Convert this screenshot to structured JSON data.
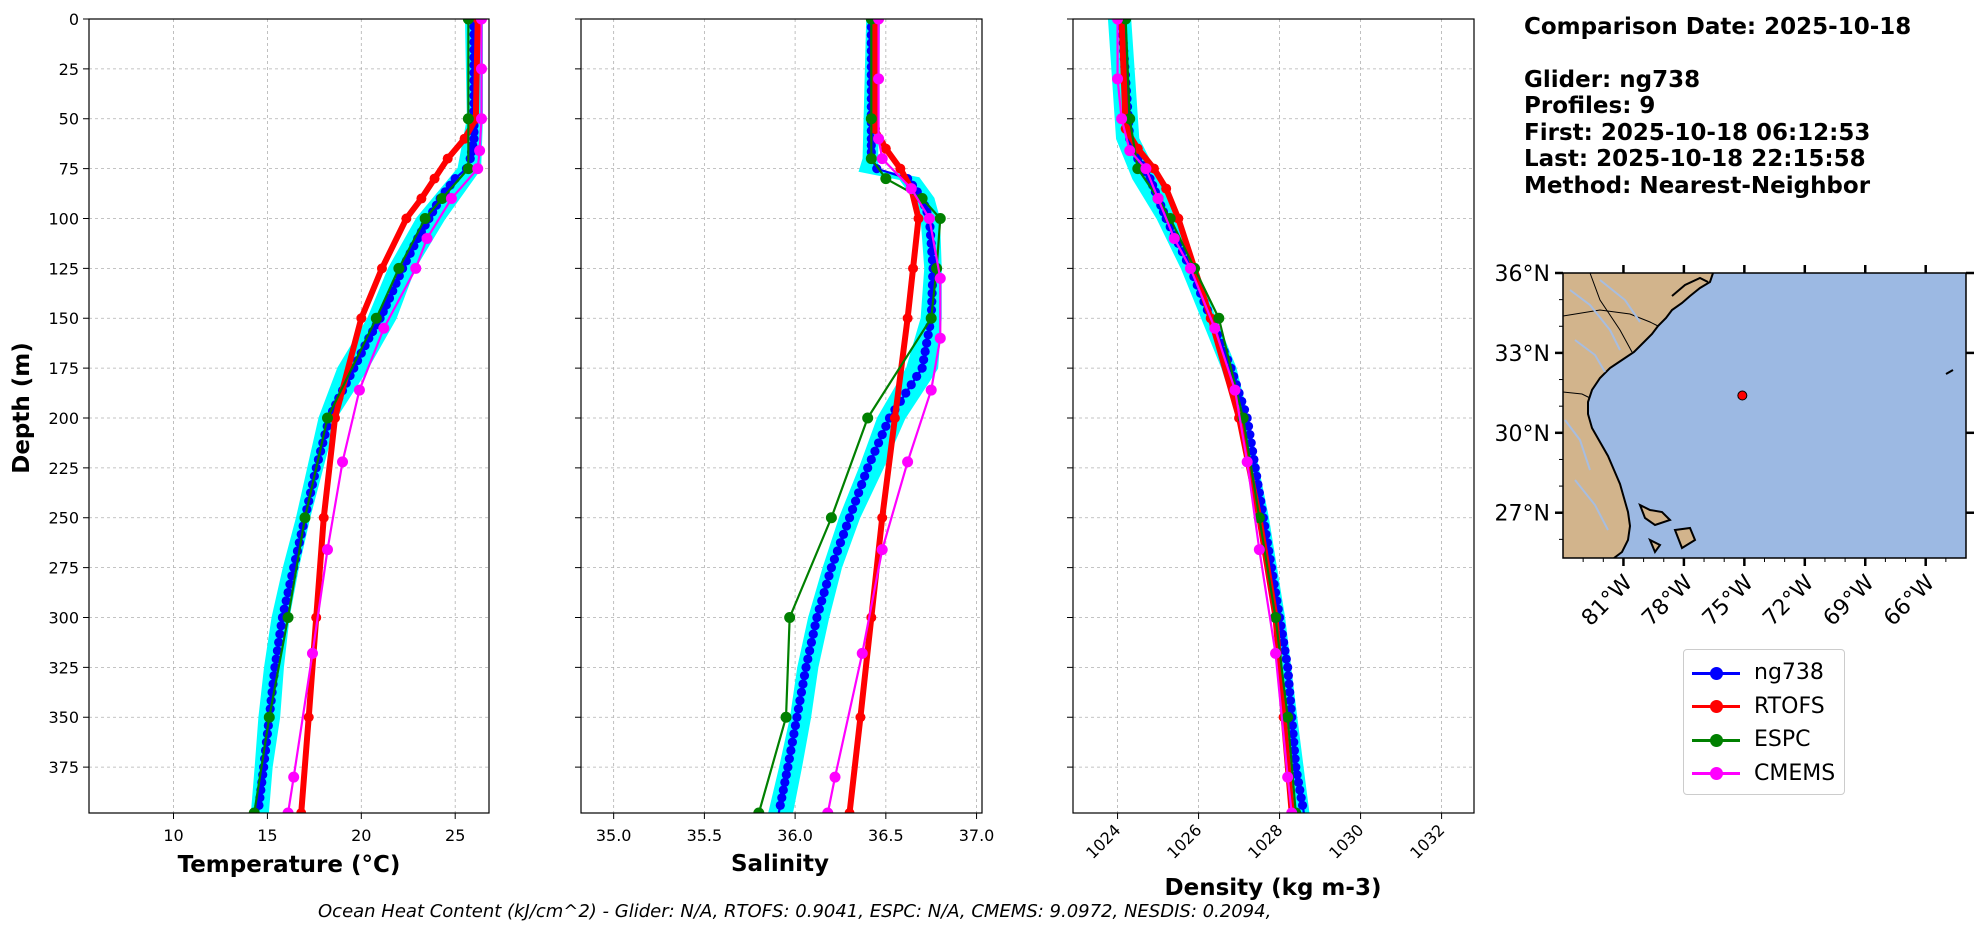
{
  "chart_data": [
    {
      "type": "line",
      "id": "temperature",
      "xlabel": "Temperature (°C)",
      "ylabel": "Depth (m)",
      "xlim": [
        5.5,
        26.8
      ],
      "ylim": [
        0,
        398
      ],
      "y_inverted": true,
      "xticks": [
        10,
        15,
        20,
        25
      ],
      "yticks": [
        0,
        25,
        50,
        75,
        100,
        125,
        150,
        175,
        200,
        225,
        250,
        275,
        300,
        325,
        350,
        375
      ],
      "grid": true,
      "series": [
        {
          "name": "ng738 spread",
          "color": "#00ffff",
          "kind": "band",
          "depth": [
            0,
            50,
            75,
            100,
            125,
            150,
            175,
            200,
            225,
            250,
            275,
            300,
            325,
            350,
            375,
            398
          ],
          "min": [
            25.6,
            25.7,
            25.2,
            23.0,
            21.5,
            20.4,
            18.8,
            17.8,
            17.2,
            16.6,
            15.9,
            15.3,
            14.9,
            14.6,
            14.4,
            14.2
          ],
          "max": [
            26.4,
            26.4,
            26.3,
            24.4,
            22.8,
            21.8,
            20.3,
            18.6,
            17.9,
            17.2,
            16.6,
            16.1,
            15.8,
            15.6,
            15.2,
            15.0
          ]
        },
        {
          "name": "ng738",
          "color": "#0000ff",
          "depth": [
            0,
            50,
            60,
            70,
            75,
            80,
            90,
            100,
            110,
            125,
            140,
            150,
            160,
            175,
            190,
            200,
            225,
            250,
            275,
            300,
            325,
            350,
            375,
            398
          ],
          "values": [
            26.0,
            26.0,
            26.0,
            25.8,
            25.6,
            25.0,
            24.2,
            23.6,
            23.0,
            22.2,
            21.5,
            21.0,
            20.4,
            19.6,
            18.8,
            18.3,
            17.6,
            17.0,
            16.4,
            15.8,
            15.4,
            15.1,
            14.8,
            14.5
          ]
        },
        {
          "name": "RTOFS",
          "color": "#ff0000",
          "width": 6,
          "depth": [
            0,
            50,
            60,
            70,
            80,
            90,
            100,
            125,
            150,
            200,
            250,
            300,
            350,
            398
          ],
          "values": [
            26.2,
            26.1,
            25.5,
            24.6,
            23.9,
            23.2,
            22.4,
            21.1,
            20.0,
            18.6,
            18.0,
            17.6,
            17.2,
            16.8
          ]
        },
        {
          "name": "ESPC",
          "color": "#008000",
          "depth": [
            0,
            50,
            75,
            90,
            100,
            125,
            150,
            200,
            250,
            300,
            350,
            398
          ],
          "values": [
            25.7,
            25.7,
            25.7,
            24.3,
            23.4,
            22.0,
            20.8,
            18.2,
            17.0,
            16.1,
            15.1,
            14.3
          ]
        },
        {
          "name": "CMEMS",
          "color": "#ff00ff",
          "depth": [
            0,
            25,
            50,
            66,
            75,
            90,
            110,
            125,
            155,
            186,
            222,
            266,
            318,
            380,
            398
          ],
          "values": [
            26.4,
            26.4,
            26.4,
            26.3,
            26.2,
            24.8,
            23.5,
            22.9,
            21.2,
            19.9,
            19.0,
            18.2,
            17.4,
            16.4,
            16.1
          ]
        }
      ]
    },
    {
      "type": "line",
      "id": "salinity",
      "xlabel": "Salinity",
      "xlim": [
        34.82,
        37.03
      ],
      "ylim": [
        0,
        398
      ],
      "y_inverted": true,
      "xticks": [
        35.0,
        35.5,
        36.0,
        36.5,
        37.0
      ],
      "grid": true,
      "series": [
        {
          "name": "ng738 spread",
          "color": "#00ffff",
          "kind": "band",
          "depth": [
            0,
            70,
            76,
            80,
            90,
            100,
            125,
            150,
            175,
            200,
            225,
            250,
            275,
            300,
            325,
            350,
            375,
            398
          ],
          "min": [
            36.4,
            36.38,
            36.36,
            36.58,
            36.66,
            36.7,
            36.72,
            36.7,
            36.62,
            36.46,
            36.36,
            36.25,
            36.16,
            36.08,
            36.02,
            35.98,
            35.92,
            35.86
          ],
          "max": [
            36.46,
            36.45,
            36.45,
            36.68,
            36.76,
            36.79,
            36.8,
            36.8,
            36.78,
            36.6,
            36.48,
            36.35,
            36.25,
            36.18,
            36.12,
            36.08,
            36.03,
            35.98
          ]
        },
        {
          "name": "ng738",
          "color": "#0000ff",
          "depth": [
            0,
            60,
            70,
            75,
            80,
            90,
            100,
            125,
            150,
            175,
            200,
            225,
            250,
            275,
            300,
            325,
            350,
            375,
            398
          ],
          "values": [
            36.42,
            36.42,
            36.42,
            36.45,
            36.62,
            36.7,
            36.74,
            36.76,
            36.75,
            36.7,
            36.52,
            36.4,
            36.3,
            36.2,
            36.12,
            36.06,
            36.01,
            35.96,
            35.91
          ]
        },
        {
          "name": "RTOFS",
          "color": "#ff0000",
          "width": 6,
          "depth": [
            0,
            55,
            65,
            75,
            85,
            100,
            125,
            150,
            200,
            250,
            300,
            350,
            398
          ],
          "values": [
            36.44,
            36.44,
            36.5,
            36.58,
            36.64,
            36.68,
            36.65,
            36.62,
            36.55,
            36.48,
            36.42,
            36.36,
            36.3
          ]
        },
        {
          "name": "ESPC",
          "color": "#008000",
          "depth": [
            0,
            50,
            70,
            80,
            90,
            100,
            125,
            150,
            200,
            250,
            300,
            350,
            398
          ],
          "values": [
            36.42,
            36.42,
            36.42,
            36.5,
            36.7,
            36.8,
            36.78,
            36.75,
            36.4,
            36.2,
            35.97,
            35.95,
            35.8
          ]
        },
        {
          "name": "CMEMS",
          "color": "#ff00ff",
          "depth": [
            0,
            30,
            60,
            70,
            85,
            100,
            130,
            160,
            186,
            222,
            266,
            318,
            380,
            398
          ],
          "values": [
            36.46,
            36.46,
            36.46,
            36.48,
            36.64,
            36.74,
            36.8,
            36.8,
            36.75,
            36.62,
            36.48,
            36.37,
            36.22,
            36.18
          ]
        }
      ]
    },
    {
      "type": "line",
      "id": "density",
      "xlabel": "Density (kg m-3)",
      "xlim": [
        1022.9,
        1032.8
      ],
      "ylim": [
        0,
        398
      ],
      "y_inverted": true,
      "xticks": [
        1024,
        1026,
        1028,
        1030,
        1032
      ],
      "xtick_rotation": 45,
      "grid": true,
      "series": [
        {
          "name": "ng738 spread",
          "color": "#00ffff",
          "kind": "band",
          "depth": [
            0,
            60,
            80,
            100,
            125,
            150,
            175,
            200,
            250,
            300,
            350,
            398
          ],
          "min": [
            1023.8,
            1024.0,
            1024.4,
            1025.0,
            1025.6,
            1026.1,
            1026.6,
            1027.0,
            1027.5,
            1027.9,
            1028.2,
            1028.4
          ],
          "max": [
            1024.3,
            1024.5,
            1025.0,
            1025.4,
            1025.9,
            1026.4,
            1026.9,
            1027.2,
            1027.7,
            1028.1,
            1028.4,
            1028.7
          ]
        },
        {
          "name": "ng738",
          "color": "#0000ff",
          "depth": [
            0,
            60,
            70,
            80,
            90,
            100,
            125,
            150,
            175,
            200,
            225,
            250,
            275,
            300,
            325,
            350,
            375,
            398
          ],
          "values": [
            1024.1,
            1024.3,
            1024.5,
            1024.8,
            1025.0,
            1025.2,
            1025.8,
            1026.3,
            1026.8,
            1027.2,
            1027.4,
            1027.6,
            1027.8,
            1028.0,
            1028.2,
            1028.3,
            1028.4,
            1028.6
          ]
        },
        {
          "name": "RTOFS",
          "color": "#ff0000",
          "width": 6,
          "depth": [
            0,
            55,
            65,
            75,
            85,
            100,
            125,
            150,
            200,
            250,
            300,
            350,
            398
          ],
          "values": [
            1024.1,
            1024.2,
            1024.5,
            1024.9,
            1025.2,
            1025.5,
            1025.9,
            1026.3,
            1027.0,
            1027.5,
            1027.9,
            1028.1,
            1028.3
          ]
        },
        {
          "name": "ESPC",
          "color": "#008000",
          "depth": [
            0,
            50,
            75,
            90,
            100,
            125,
            150,
            200,
            250,
            300,
            350,
            398
          ],
          "values": [
            1024.2,
            1024.3,
            1024.5,
            1025.0,
            1025.3,
            1025.9,
            1026.5,
            1027.1,
            1027.5,
            1027.9,
            1028.2,
            1028.4
          ]
        },
        {
          "name": "CMEMS",
          "color": "#ff00ff",
          "depth": [
            0,
            30,
            50,
            66,
            75,
            90,
            110,
            125,
            155,
            186,
            222,
            266,
            318,
            380,
            398
          ],
          "values": [
            1024.0,
            1024.0,
            1024.1,
            1024.3,
            1024.7,
            1025.0,
            1025.4,
            1025.8,
            1026.4,
            1026.9,
            1027.2,
            1027.5,
            1027.9,
            1028.2,
            1028.3
          ]
        }
      ]
    }
  ],
  "info": {
    "comparison_date": "Comparison Date: 2025-10-18",
    "glider": "Glider: ng738",
    "profiles": "Profiles: 9",
    "first": "First: 2025-10-18 06:12:53",
    "last": "Last: 2025-10-18 22:15:58",
    "method": "Method: Nearest-Neighbor"
  },
  "map": {
    "lat_labels": [
      "36°N",
      "33°N",
      "30°N",
      "27°N"
    ],
    "lon_labels": [
      "81°W",
      "78°W",
      "75°W",
      "72°W",
      "69°W",
      "66°W"
    ],
    "ocean_color": "#9cb9e3",
    "land_color": "#d2b48c",
    "marker_color": "#ff0000",
    "marker_lon": -75.1,
    "marker_lat": 31.4
  },
  "legend": [
    {
      "label": "ng738",
      "color": "#0000ff"
    },
    {
      "label": "RTOFS",
      "color": "#ff0000"
    },
    {
      "label": "ESPC",
      "color": "#008000"
    },
    {
      "label": "CMEMS",
      "color": "#ff00ff"
    }
  ],
  "caption": "Ocean Heat Content (kJ/cm^2) - Glider: N/A,  RTOFS: 0.9041,  ESPC: N/A,  CMEMS: 9.0972,  NESDIS: 0.2094,"
}
